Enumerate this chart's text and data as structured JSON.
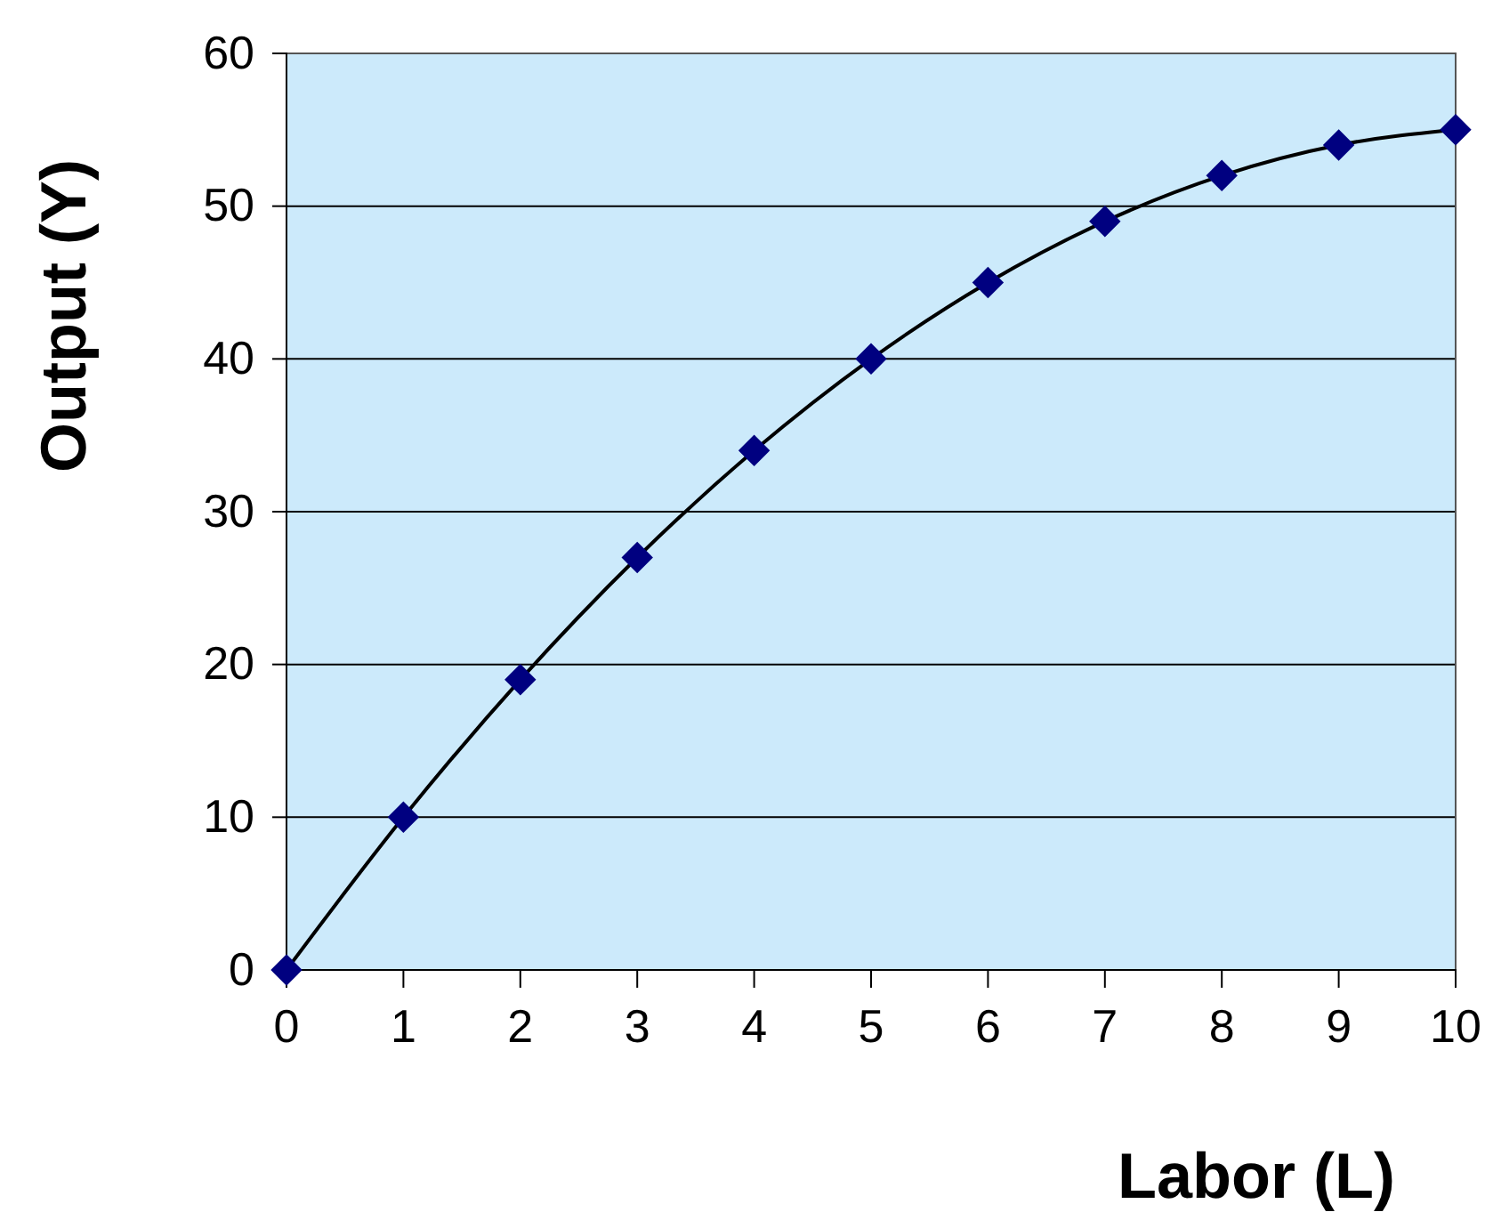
{
  "chart_data": {
    "type": "line",
    "xlabel": "Labor (L)",
    "ylabel": "Output (Y)",
    "x": [
      0,
      1,
      2,
      3,
      4,
      5,
      6,
      7,
      8,
      9,
      10
    ],
    "series": [
      {
        "color": "#000080",
        "values": [
          0,
          10,
          19,
          27,
          34,
          40,
          45,
          49,
          52,
          54,
          55
        ]
      }
    ],
    "xlim": [
      0,
      10
    ],
    "xticks": [
      0,
      1,
      2,
      3,
      4,
      5,
      6,
      7,
      8,
      9,
      10
    ],
    "ylim": [
      0,
      60
    ],
    "yticks": [
      0,
      10,
      20,
      30,
      40,
      50,
      60
    ],
    "grid": "y",
    "marker": "diamond",
    "line_style": "solid"
  }
}
